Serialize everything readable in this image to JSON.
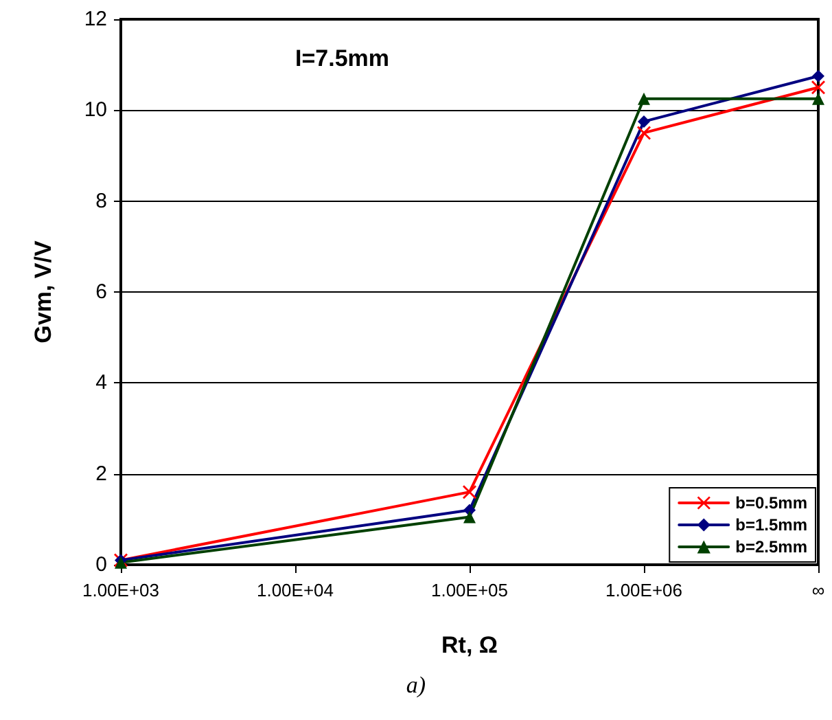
{
  "chart_data": {
    "type": "line",
    "xlabel": "Rt, Ω",
    "ylabel": "Gvm, V/V",
    "annotations": [
      "I=7.5mm",
      "a)"
    ],
    "categories": [
      "1.00E+03",
      "1.00E+04",
      "1.00E+05",
      "1.00E+06",
      "∞"
    ],
    "series": [
      {
        "name": "b=0.5mm",
        "color": "#ff0000",
        "marker": "cross",
        "values": [
          0.1,
          null,
          1.6,
          9.5,
          10.5
        ]
      },
      {
        "name": "b=1.5mm",
        "color": "#000080",
        "marker": "diamond",
        "values": [
          0.1,
          null,
          1.2,
          9.75,
          10.75
        ]
      },
      {
        "name": "b=2.5mm",
        "color": "#004000",
        "marker": "triangle",
        "values": [
          0.05,
          null,
          1.05,
          10.25,
          10.25
        ]
      }
    ],
    "ylim": [
      0,
      12
    ],
    "yticks": [
      0,
      2,
      4,
      6,
      8,
      10,
      12
    ],
    "grid": "y",
    "legend": "bottom right",
    "line_style": "solid"
  }
}
